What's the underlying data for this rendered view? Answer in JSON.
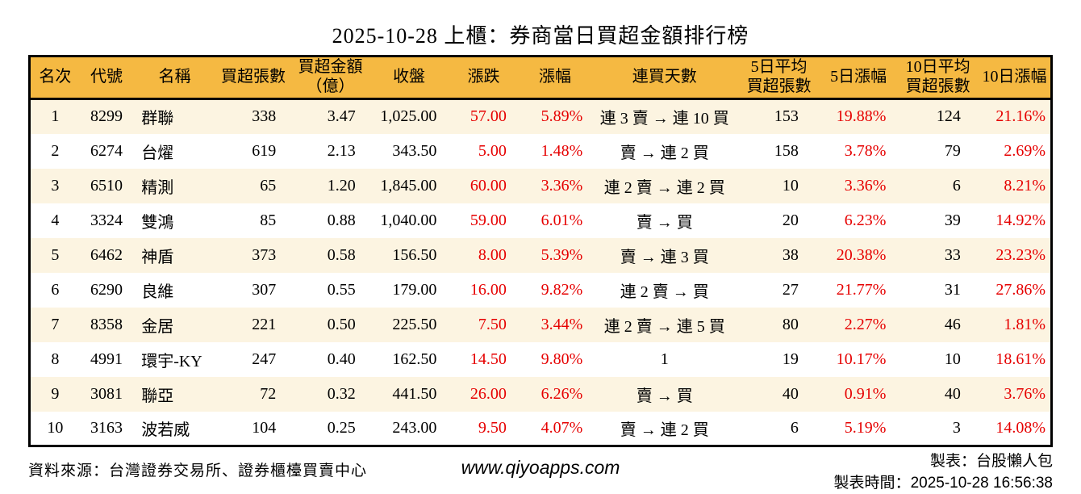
{
  "title": "2025-10-28 上櫃：券商當日買超金額排行榜",
  "colors": {
    "header_bg": "#F5B942",
    "row_alt_bg": "#FCF4E1",
    "up_red": "#E60000"
  },
  "table": {
    "columns": [
      {
        "id": "rank",
        "label": "名次",
        "red": false
      },
      {
        "id": "code",
        "label": "代號",
        "red": false
      },
      {
        "id": "name",
        "label": "名稱",
        "red": false
      },
      {
        "id": "lots",
        "label": "買超張數",
        "red": false
      },
      {
        "id": "amount",
        "label": "買超金額\n（億）",
        "red": false
      },
      {
        "id": "close",
        "label": "收盤",
        "red": false
      },
      {
        "id": "change",
        "label": "漲跌",
        "red": true
      },
      {
        "id": "pct",
        "label": "漲幅",
        "red": true
      },
      {
        "id": "streak",
        "label": "連買天數",
        "red": false
      },
      {
        "id": "avg5",
        "label": "5日平均\n買超張數",
        "red": false
      },
      {
        "id": "pct5",
        "label": "5日漲幅",
        "red": true
      },
      {
        "id": "avg10",
        "label": "10日平均\n買超張數",
        "red": false
      },
      {
        "id": "pct10",
        "label": "10日漲幅",
        "red": true
      }
    ],
    "rows": [
      {
        "rank": "1",
        "code": "8299",
        "name": "群聯",
        "lots": "338",
        "amount": "3.47",
        "close": "1,025.00",
        "change": "57.00",
        "pct": "5.89%",
        "streak": "連 3 賣 → 連 10 買",
        "avg5": "153",
        "pct5": "19.88%",
        "avg10": "124",
        "pct10": "21.16%"
      },
      {
        "rank": "2",
        "code": "6274",
        "name": "台燿",
        "lots": "619",
        "amount": "2.13",
        "close": "343.50",
        "change": "5.00",
        "pct": "1.48%",
        "streak": "賣 → 連 2 買",
        "avg5": "158",
        "pct5": "3.78%",
        "avg10": "79",
        "pct10": "2.69%"
      },
      {
        "rank": "3",
        "code": "6510",
        "name": "精測",
        "lots": "65",
        "amount": "1.20",
        "close": "1,845.00",
        "change": "60.00",
        "pct": "3.36%",
        "streak": "連 2 賣 → 連 2 買",
        "avg5": "10",
        "pct5": "3.36%",
        "avg10": "6",
        "pct10": "8.21%"
      },
      {
        "rank": "4",
        "code": "3324",
        "name": "雙鴻",
        "lots": "85",
        "amount": "0.88",
        "close": "1,040.00",
        "change": "59.00",
        "pct": "6.01%",
        "streak": "賣 → 買",
        "avg5": "20",
        "pct5": "6.23%",
        "avg10": "39",
        "pct10": "14.92%"
      },
      {
        "rank": "5",
        "code": "6462",
        "name": "神盾",
        "lots": "373",
        "amount": "0.58",
        "close": "156.50",
        "change": "8.00",
        "pct": "5.39%",
        "streak": "賣 → 連 3 買",
        "avg5": "38",
        "pct5": "20.38%",
        "avg10": "33",
        "pct10": "23.23%"
      },
      {
        "rank": "6",
        "code": "6290",
        "name": "良維",
        "lots": "307",
        "amount": "0.55",
        "close": "179.00",
        "change": "16.00",
        "pct": "9.82%",
        "streak": "連 2 賣 → 買",
        "avg5": "27",
        "pct5": "21.77%",
        "avg10": "31",
        "pct10": "27.86%"
      },
      {
        "rank": "7",
        "code": "8358",
        "name": "金居",
        "lots": "221",
        "amount": "0.50",
        "close": "225.50",
        "change": "7.50",
        "pct": "3.44%",
        "streak": "連 2 賣 → 連 5 買",
        "avg5": "80",
        "pct5": "2.27%",
        "avg10": "46",
        "pct10": "1.81%"
      },
      {
        "rank": "8",
        "code": "4991",
        "name": "環宇-KY",
        "lots": "247",
        "amount": "0.40",
        "close": "162.50",
        "change": "14.50",
        "pct": "9.80%",
        "streak": "1",
        "avg5": "19",
        "pct5": "10.17%",
        "avg10": "10",
        "pct10": "18.61%"
      },
      {
        "rank": "9",
        "code": "3081",
        "name": "聯亞",
        "lots": "72",
        "amount": "0.32",
        "close": "441.50",
        "change": "26.00",
        "pct": "6.26%",
        "streak": "賣 → 買",
        "avg5": "40",
        "pct5": "0.91%",
        "avg10": "40",
        "pct10": "3.76%"
      },
      {
        "rank": "10",
        "code": "3163",
        "name": "波若威",
        "lots": "104",
        "amount": "0.25",
        "close": "243.00",
        "change": "9.50",
        "pct": "4.07%",
        "streak": "賣 → 連 2 買",
        "avg5": "6",
        "pct5": "5.19%",
        "avg10": "3",
        "pct10": "14.08%"
      }
    ]
  },
  "footer": {
    "source": "資料來源：台灣證券交易所、證券櫃檯買賣中心",
    "website": "www.qiyoapps.com",
    "maker": "製表：台股懶人包",
    "made_at_label": "製表時間：",
    "made_at_value": "2025-10-28 16:56:38"
  }
}
